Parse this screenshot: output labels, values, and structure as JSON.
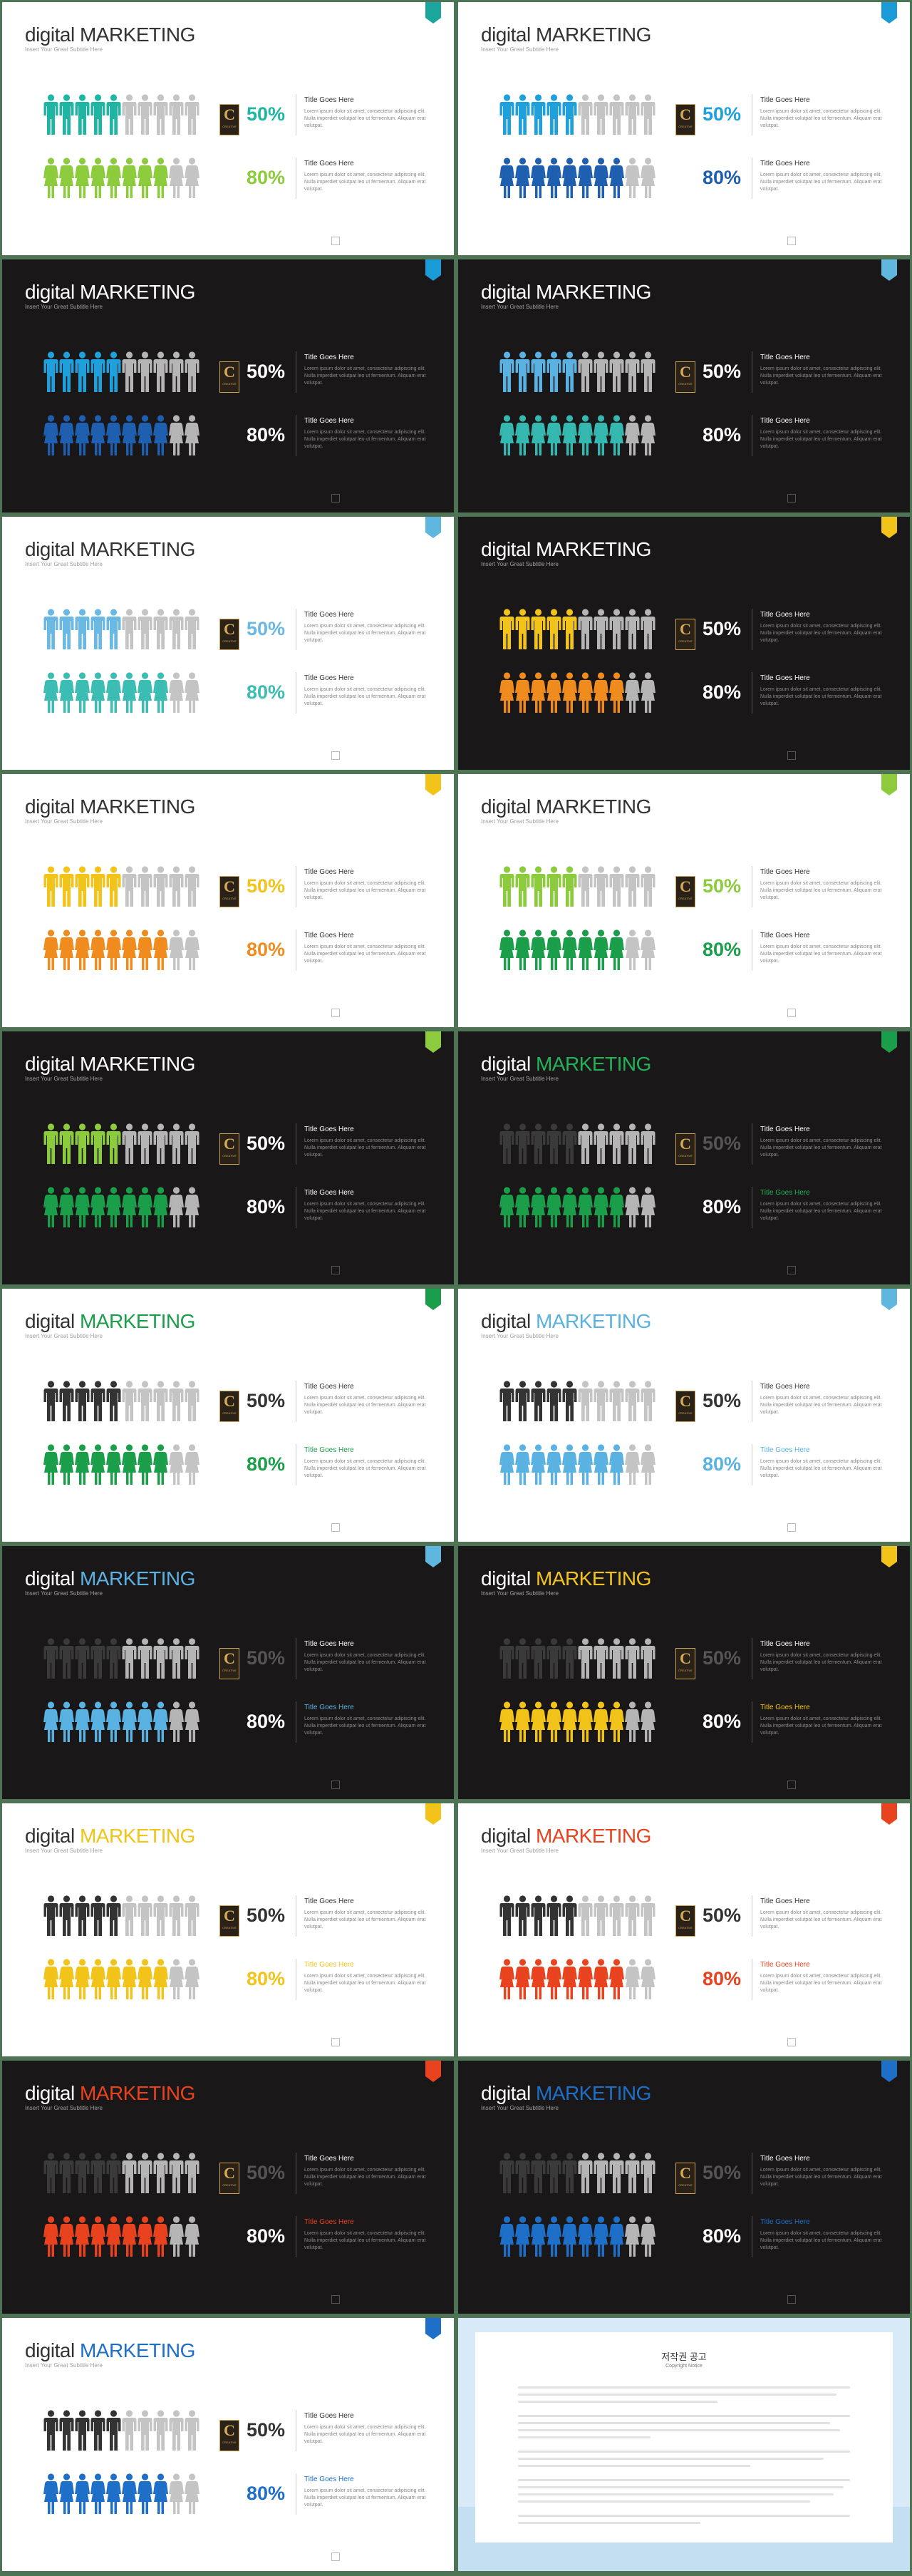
{
  "common": {
    "subtitle": "Insert Your Great Subtitle Here",
    "title_left": "digital",
    "title_right": "MARKETING",
    "block_heading": "Title Goes Here",
    "block_text": "Lorem ipsum dolor sit amet, consectetur adipiscing elit. Nulla imperdiet volutpat leo ut fermentum. Aliquam erat volutpat.",
    "logo_letter": "C",
    "logo_text": "CREATIVE"
  },
  "slides": [
    {
      "theme": "light",
      "tag": "#1aa69a",
      "title_color": "#333333",
      "top": {
        "percent": "50%",
        "color": "#1fb5a3",
        "pct_color": "#1fb5a3",
        "head_color": "#333333",
        "filled": 5
      },
      "bottom": {
        "percent": "80%",
        "color": "#8ccc3c",
        "pct_color": "#8ccc3c",
        "head_color": "#333333",
        "filled": 8
      }
    },
    {
      "theme": "light",
      "tag": "#1a9ad6",
      "title_color": "#333333",
      "top": {
        "percent": "50%",
        "color": "#1ea0dc",
        "pct_color": "#1ea0dc",
        "head_color": "#333333",
        "filled": 5
      },
      "bottom": {
        "percent": "80%",
        "color": "#1f5fb0",
        "pct_color": "#1f5fb0",
        "head_color": "#333333",
        "filled": 8
      }
    },
    {
      "theme": "dark",
      "tag": "#1a9ad6",
      "title_color": "#ffffff",
      "top": {
        "percent": "50%",
        "color": "#1ea0dc",
        "pct_color": "#ffffff",
        "head_color": "#ffffff",
        "filled": 5
      },
      "bottom": {
        "percent": "80%",
        "color": "#1f5fb0",
        "pct_color": "#ffffff",
        "head_color": "#ffffff",
        "filled": 8
      }
    },
    {
      "theme": "dark",
      "tag": "#5fb7e0",
      "title_color": "#ffffff",
      "top": {
        "percent": "50%",
        "color": "#5ab2e2",
        "pct_color": "#ffffff",
        "head_color": "#ffffff",
        "filled": 5
      },
      "bottom": {
        "percent": "80%",
        "color": "#35b8b0",
        "pct_color": "#ffffff",
        "head_color": "#ffffff",
        "filled": 8
      }
    },
    {
      "theme": "light",
      "tag": "#5fb7e0",
      "title_color": "#333333",
      "top": {
        "percent": "50%",
        "color": "#6ab8e4",
        "pct_color": "#6ab8e4",
        "head_color": "#333333",
        "filled": 5
      },
      "bottom": {
        "percent": "80%",
        "color": "#3bbdb3",
        "pct_color": "#3bbdb3",
        "head_color": "#333333",
        "filled": 8
      }
    },
    {
      "theme": "dark",
      "tag": "#f2c318",
      "title_color": "#ffffff",
      "top": {
        "percent": "50%",
        "color": "#f2c318",
        "pct_color": "#ffffff",
        "head_color": "#ffffff",
        "filled": 5
      },
      "bottom": {
        "percent": "80%",
        "color": "#f08c1e",
        "pct_color": "#ffffff",
        "head_color": "#ffffff",
        "filled": 8
      }
    },
    {
      "theme": "light",
      "tag": "#f2c318",
      "title_color": "#333333",
      "top": {
        "percent": "50%",
        "color": "#f2c318",
        "pct_color": "#f2c318",
        "head_color": "#333333",
        "filled": 5
      },
      "bottom": {
        "percent": "80%",
        "color": "#f08c1e",
        "pct_color": "#f08c1e",
        "head_color": "#333333",
        "filled": 8
      }
    },
    {
      "theme": "light",
      "tag": "#8ccc3c",
      "title_color": "#333333",
      "top": {
        "percent": "50%",
        "color": "#8ccc3c",
        "pct_color": "#8ccc3c",
        "head_color": "#333333",
        "filled": 5
      },
      "bottom": {
        "percent": "80%",
        "color": "#1a9e4a",
        "pct_color": "#1a9e4a",
        "head_color": "#333333",
        "filled": 8
      }
    },
    {
      "theme": "dark",
      "tag": "#8ccc3c",
      "title_color": "#ffffff",
      "top": {
        "percent": "50%",
        "color": "#8ccc3c",
        "pct_color": "#ffffff",
        "head_color": "#ffffff",
        "filled": 5
      },
      "bottom": {
        "percent": "80%",
        "color": "#1a9e4a",
        "pct_color": "#ffffff",
        "head_color": "#ffffff",
        "filled": 8
      }
    },
    {
      "theme": "dark",
      "tag": "#1a9e4a",
      "title_color": "#ffffff",
      "accent": "#22b25a",
      "top": {
        "percent": "50%",
        "color": "#3a3a3a",
        "pct_color": "#555555",
        "head_color": "#ffffff",
        "filled": 5
      },
      "bottom": {
        "percent": "80%",
        "color": "#1a9e4a",
        "pct_color": "#ffffff",
        "head_color": "#22b25a",
        "filled": 8
      }
    },
    {
      "theme": "light",
      "tag": "#1a9e4a",
      "title_color": "#333333",
      "accent": "#1a9e4a",
      "top": {
        "percent": "50%",
        "color": "#333333",
        "pct_color": "#333333",
        "head_color": "#333333",
        "filled": 5
      },
      "bottom": {
        "percent": "80%",
        "color": "#1a9e4a",
        "pct_color": "#1a9e4a",
        "head_color": "#1a9e4a",
        "filled": 8
      }
    },
    {
      "theme": "light",
      "tag": "#5fb7e0",
      "title_color": "#333333",
      "accent": "#5ab2e2",
      "top": {
        "percent": "50%",
        "color": "#333333",
        "pct_color": "#333333",
        "head_color": "#333333",
        "filled": 5
      },
      "bottom": {
        "percent": "80%",
        "color": "#5ab2e2",
        "pct_color": "#5ab2e2",
        "head_color": "#5ab2e2",
        "filled": 8
      }
    },
    {
      "theme": "dark",
      "tag": "#5fb7e0",
      "title_color": "#ffffff",
      "accent": "#5ab2e2",
      "top": {
        "percent": "50%",
        "color": "#3a3a3a",
        "pct_color": "#555555",
        "head_color": "#ffffff",
        "filled": 5
      },
      "bottom": {
        "percent": "80%",
        "color": "#5ab2e2",
        "pct_color": "#ffffff",
        "head_color": "#5ab2e2",
        "filled": 8
      }
    },
    {
      "theme": "dark",
      "tag": "#f2c318",
      "title_color": "#ffffff",
      "accent": "#f2c318",
      "top": {
        "percent": "50%",
        "color": "#3a3a3a",
        "pct_color": "#555555",
        "head_color": "#ffffff",
        "filled": 5
      },
      "bottom": {
        "percent": "80%",
        "color": "#f2c318",
        "pct_color": "#ffffff",
        "head_color": "#f2c318",
        "filled": 8
      }
    },
    {
      "theme": "light",
      "tag": "#f2c318",
      "title_color": "#333333",
      "accent": "#f2c318",
      "top": {
        "percent": "50%",
        "color": "#333333",
        "pct_color": "#333333",
        "head_color": "#333333",
        "filled": 5
      },
      "bottom": {
        "percent": "80%",
        "color": "#f2c318",
        "pct_color": "#f2c318",
        "head_color": "#f2c318",
        "filled": 8
      }
    },
    {
      "theme": "light",
      "tag": "#e8431e",
      "title_color": "#333333",
      "accent": "#e8431e",
      "top": {
        "percent": "50%",
        "color": "#333333",
        "pct_color": "#333333",
        "head_color": "#333333",
        "filled": 5
      },
      "bottom": {
        "percent": "80%",
        "color": "#e8431e",
        "pct_color": "#e8431e",
        "head_color": "#e8431e",
        "filled": 8
      }
    },
    {
      "theme": "dark",
      "tag": "#e8431e",
      "title_color": "#ffffff",
      "accent": "#e8431e",
      "top": {
        "percent": "50%",
        "color": "#3a3a3a",
        "pct_color": "#555555",
        "head_color": "#ffffff",
        "filled": 5
      },
      "bottom": {
        "percent": "80%",
        "color": "#e8431e",
        "pct_color": "#ffffff",
        "head_color": "#e8431e",
        "filled": 8
      }
    },
    {
      "theme": "dark",
      "tag": "#1e6fc8",
      "title_color": "#ffffff",
      "accent": "#1e6fc8",
      "top": {
        "percent": "50%",
        "color": "#3a3a3a",
        "pct_color": "#555555",
        "head_color": "#ffffff",
        "filled": 5
      },
      "bottom": {
        "percent": "80%",
        "color": "#1e6fc8",
        "pct_color": "#ffffff",
        "head_color": "#1e6fc8",
        "filled": 8
      }
    },
    {
      "theme": "light",
      "tag": "#1e6fc8",
      "title_color": "#333333",
      "accent": "#1e6fc8",
      "top": {
        "percent": "50%",
        "color": "#333333",
        "pct_color": "#333333",
        "head_color": "#333333",
        "filled": 5
      },
      "bottom": {
        "percent": "80%",
        "color": "#1e6fc8",
        "pct_color": "#1e6fc8",
        "head_color": "#1e6fc8",
        "filled": 8
      }
    }
  ],
  "notice": {
    "title": "저작권 공고",
    "subtitle": "Copyright Notice"
  }
}
